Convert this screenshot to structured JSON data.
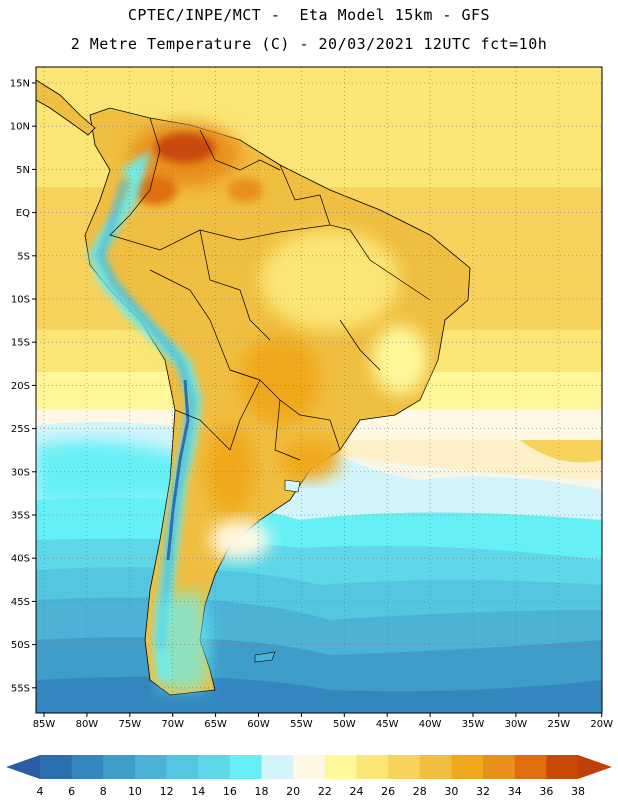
{
  "header": {
    "title_line1": "CPTEC/INPE/MCT -  Eta Model 15km - GFS",
    "title_line2": "2 Metre Temperature (C) - 20/03/2021 12UTC fct=10h"
  },
  "map": {
    "region": "South America",
    "latitude_labels": [
      "15N",
      "10N",
      "5N",
      "EQ",
      "5S",
      "10S",
      "15S",
      "20S",
      "25S",
      "30S",
      "35S",
      "40S",
      "45S",
      "50S",
      "55S"
    ],
    "longitude_labels": [
      "85W",
      "80W",
      "75W",
      "70W",
      "65W",
      "60W",
      "55W",
      "50W",
      "45W",
      "40W",
      "35W",
      "30W",
      "25W",
      "20W"
    ]
  },
  "colorbar": {
    "labels": [
      "4",
      "6",
      "8",
      "10",
      "12",
      "14",
      "16",
      "18",
      "20",
      "22",
      "24",
      "26",
      "28",
      "30",
      "32",
      "34",
      "36",
      "38"
    ],
    "colors": [
      "#2c6fb0",
      "#3487be",
      "#3f9ec9",
      "#4cb3d6",
      "#55c6df",
      "#5ed8e8",
      "#66f0f5",
      "#d2f4fb",
      "#fff8e4",
      "#fff79a",
      "#fbe574",
      "#f7d25c",
      "#f0be40",
      "#f0a91a",
      "#e8901c",
      "#e06e0e",
      "#c84a08"
    ],
    "low_color": "#2a5da4",
    "high_color": "#c0400a"
  }
}
